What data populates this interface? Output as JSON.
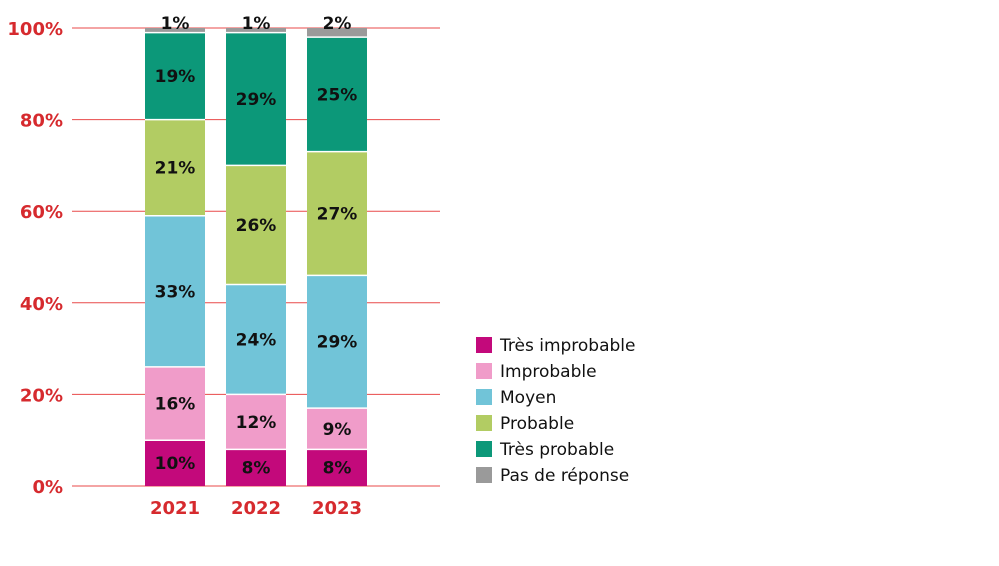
{
  "chart_data": {
    "type": "bar",
    "stacked": true,
    "percent_stacked": true,
    "categories": [
      "2021",
      "2022",
      "2023"
    ],
    "series": [
      {
        "name": "Très improbable",
        "color": "#c3097b",
        "values": [
          10,
          8,
          8
        ],
        "labels": [
          "10%",
          "8%",
          "8%"
        ]
      },
      {
        "name": "Improbable",
        "color": "#f09cc9",
        "values": [
          16,
          12,
          9
        ],
        "labels": [
          "16%",
          "12%",
          "9%"
        ]
      },
      {
        "name": "Moyen",
        "color": "#71c4d8",
        "values": [
          33,
          24,
          29
        ],
        "labels": [
          "33%",
          "24%",
          "29%"
        ]
      },
      {
        "name": "Probable",
        "color": "#b2cc63",
        "values": [
          21,
          26,
          27
        ],
        "labels": [
          "21%",
          "26%",
          "27%"
        ]
      },
      {
        "name": "Très probable",
        "color": "#0c9879",
        "values": [
          19,
          29,
          25
        ],
        "labels": [
          "19%",
          "29%",
          "25%"
        ]
      },
      {
        "name": "Pas de réponse",
        "color": "#9a9a9a",
        "values": [
          1,
          1,
          2
        ],
        "labels": [
          "1%",
          "1%",
          "2%"
        ]
      }
    ],
    "ylim": [
      0,
      100
    ],
    "yticks": [
      "0%",
      "20%",
      "40%",
      "60%",
      "80%",
      "100%"
    ],
    "ytick_values": [
      0,
      20,
      40,
      60,
      80,
      100
    ],
    "grid": true,
    "grid_color": "#e84a4a",
    "axis_label_color": "#d62a2e",
    "legend_position": "right",
    "legend_muted_color": "#9a9a9a",
    "title": "",
    "xlabel": "",
    "ylabel": ""
  }
}
